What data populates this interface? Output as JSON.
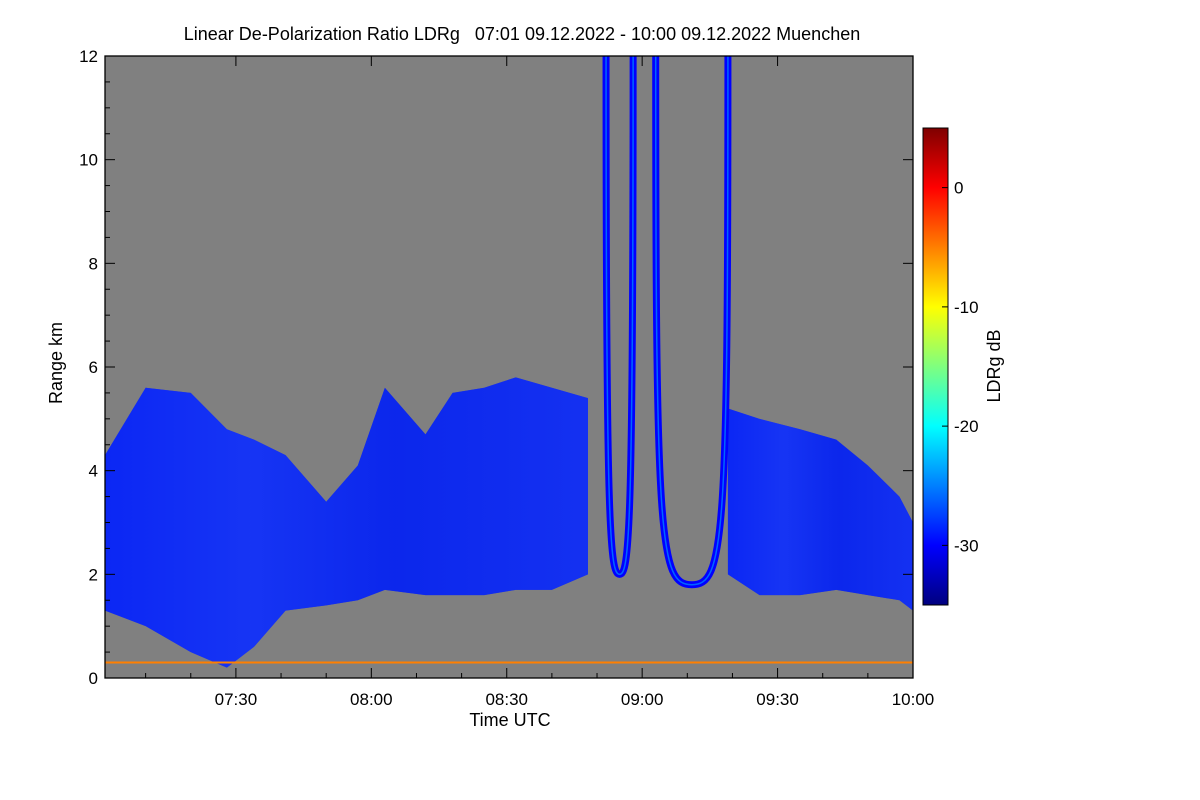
{
  "chart_data": {
    "type": "heatmap",
    "title": "Linear De-Polarization Ratio LDRg   07:01 09.12.2022 - 10:00 09.12.2022 Muenchen",
    "xlabel": "Time UTC",
    "ylabel": "Range km",
    "x_range": [
      "07:01",
      "10:00"
    ],
    "y_range": [
      0,
      12
    ],
    "x_ticks": [
      {
        "label": "07:30",
        "minutes": 450
      },
      {
        "label": "08:00",
        "minutes": 480
      },
      {
        "label": "08:30",
        "minutes": 510
      },
      {
        "label": "09:00",
        "minutes": 540
      },
      {
        "label": "09:30",
        "minutes": 570
      },
      {
        "label": "10:00",
        "minutes": 600
      }
    ],
    "y_ticks": [
      {
        "label": "0",
        "value": 0
      },
      {
        "label": "2",
        "value": 2
      },
      {
        "label": "4",
        "value": 4
      },
      {
        "label": "6",
        "value": 6
      },
      {
        "label": "8",
        "value": 8
      },
      {
        "label": "10",
        "value": 10
      },
      {
        "label": "12",
        "value": 12
      }
    ],
    "colorbar": {
      "label": "LDRg dB",
      "range": [
        -35,
        5
      ],
      "ticks": [
        {
          "label": "0",
          "value": 0
        },
        {
          "label": "-10",
          "value": -10
        },
        {
          "label": "-20",
          "value": -20
        },
        {
          "label": "-30",
          "value": -30
        }
      ],
      "colormap": [
        "#00007f",
        "#0000ff",
        "#007fff",
        "#00ffff",
        "#7fff7f",
        "#ffff00",
        "#ff7f00",
        "#ff0000",
        "#7f0000"
      ]
    },
    "no_signal_color": "#808080",
    "typical_cloud_ldr_db": -30,
    "features": {
      "cloud_profile": [
        {
          "t": 421,
          "bottom": 1.3,
          "top": 4.3
        },
        {
          "t": 430,
          "bottom": 1.0,
          "top": 5.6
        },
        {
          "t": 440,
          "bottom": 0.5,
          "top": 5.5
        },
        {
          "t": 448,
          "bottom": 0.2,
          "top": 4.8
        },
        {
          "t": 454,
          "bottom": 0.6,
          "top": 4.6
        },
        {
          "t": 461,
          "bottom": 1.3,
          "top": 4.3
        },
        {
          "t": 470,
          "bottom": 1.4,
          "top": 3.4
        },
        {
          "t": 477,
          "bottom": 1.5,
          "top": 4.1
        },
        {
          "t": 483,
          "bottom": 1.7,
          "top": 5.6
        },
        {
          "t": 492,
          "bottom": 1.6,
          "top": 4.7
        },
        {
          "t": 498,
          "bottom": 1.6,
          "top": 5.5
        },
        {
          "t": 505,
          "bottom": 1.6,
          "top": 5.6
        },
        {
          "t": 512,
          "bottom": 1.7,
          "top": 5.8
        },
        {
          "t": 520,
          "bottom": 1.7,
          "top": 5.6
        },
        {
          "t": 528,
          "bottom": 2.0,
          "top": 5.4
        }
      ],
      "cloud_profile_2": [
        {
          "t": 559,
          "bottom": 2.0,
          "top": 5.2
        },
        {
          "t": 566,
          "bottom": 1.6,
          "top": 5.0
        },
        {
          "t": 575,
          "bottom": 1.6,
          "top": 4.8
        },
        {
          "t": 583,
          "bottom": 1.7,
          "top": 4.6
        },
        {
          "t": 590,
          "bottom": 1.6,
          "top": 4.1
        },
        {
          "t": 597,
          "bottom": 1.5,
          "top": 3.5
        },
        {
          "t": 600,
          "bottom": 1.3,
          "top": 3.0
        }
      ],
      "arches": [
        {
          "left_t": 532,
          "right_t": 538,
          "min_range": 2.0
        },
        {
          "left_t": 543,
          "right_t": 559,
          "min_range": 1.8
        }
      ],
      "surface_clutter_range": 0.3
    }
  }
}
